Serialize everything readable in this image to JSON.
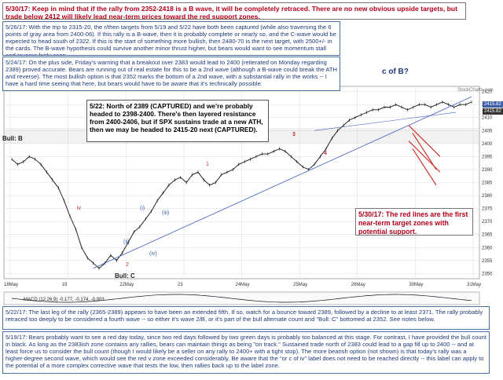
{
  "notes": {
    "n1": "5/30/17:  Keep in mind that if the rally from 2352-2418 is a B wave, it will be completely retraced.  There are no new obvious upside targets, but trade below 2412 will likely lead near-term prices toward the red support zones.",
    "n2": "5/26/17:  With the trip to 2315-20, the r/then targets from 5/19 and 5/22 have both been captured (while also traversing the 6 points of gray area from 2400-06).  If this rally is a B-wave, then it is probably complete or nearly so, and the C-wave would be expected to head south of 2322.  If this is the start of something more bullish, then 2480-70 is the next target, with 2500+/- in the cards.  The B-wave hypothesis could survive another minor thrust higher, but bears would want to see momentum stall and reverse fairly soon.",
    "n3": "5/24/17:  On the plus side, Friday's warning that a breakout over 2383 would lead to 2400 (reiterated on Monday regarding 2389) proved accurate.  Bears are running out of real estate for this to be a 2nd wave (although a B-wave could break the ATH and reverse).  The most bullish option is that 2352 marks the bottom of a 2nd wave, with a substantial rally in the works -- I have a hard time seeing that here, but bears would have to be aware that it's technically possible.",
    "n4": "5/22:  North of 2389 (CAPTURED) and we're probably headed to 2398-2400.  There's then layered resistance from 2400-2406, but if SPX sustains trade at a new ATH, then we may be headed to 2415-20 next (CAPTURED).",
    "n5": "5/30/17:  The red lines are the first near-term target zones with potential support.",
    "n6": "5/22/17:  The last leg of the rally (2365-2389) appears to have been an extended fifth.  If so, watch for a bounce toward 2389, followed by a decline to at least 2371.  The rally probably retraced too deeply to be considered a fourth wave -- so either it's wave 2/B, or it's part of the bull alternate count and \"Bull: C\" bottomed at 2352.  See notes below.",
    "n7": "5/19/17:  Bears probably want to see a red day today, since two red days followed by two green days is probably too balanced at this stage.  For contrast, I have provided the bull count in black.  As long as the 2383ish zone contains any rallies, bears can maintain things as being \"on track.\"  Sustained trade north of 2383 could lead to a gap fill up to 2400 -- and at least force us to consider the bull count (though I would likely be a seller on any rally to 2400+ with a tight stop).  The more bearish option (not shown) is that today's rally was a higher-degree second wave, which would see the red v zone exceeded considerably.  Be aware that the \"or c of iv\" label does not need to be reached directly -- this label can apply to the potential of a more complex corrective wave that tests the low, then rallies back up to the label zone."
  },
  "labels": {
    "bull_b": "Bull: B",
    "bull_c": "Bull: C",
    "c_of_b": "c of B?",
    "w3": "3",
    "w4": "4",
    "wiv": "iv",
    "wii": "(ii)",
    "wiv2": "(iv)",
    "wi": "(i)",
    "wiii": "(iii)",
    "w1": "1",
    "w2": "2",
    "macd": "MACD (12,26,9) -0.177, -0.174, -0.003",
    "watermark": "StockCharts.com"
  },
  "colors": {
    "price": "#111111",
    "trendline": "#3b5bc4",
    "support": "#d0342c",
    "gray_zone": "#c8c8c8",
    "wave_blue": "#3f5ea8",
    "wave_red": "#c4302b",
    "macd": "#111111",
    "macd_signal": "#d0342c"
  },
  "chart_data": {
    "type": "line",
    "title": "",
    "xlabel": "",
    "ylabel": "",
    "x_ticks": [
      "18May",
      "19",
      "22May",
      "23",
      "24May",
      "25May",
      "26May",
      "30May",
      "31May"
    ],
    "y_ticks": [
      2420,
      2415,
      2410,
      2405,
      2400,
      2395,
      2390,
      2385,
      2380,
      2375,
      2370,
      2365,
      2360,
      2355,
      2350
    ],
    "ylim": [
      2348,
      2422
    ],
    "price_tags": {
      "blue": "2415.82",
      "dark": "2415.82"
    },
    "series": [
      {
        "values": [
          2394,
          2392,
          2393,
          2395,
          2394,
          2392,
          2389,
          2386,
          2383,
          2378,
          2372,
          2367,
          2360,
          2356,
          2354,
          2352,
          2354,
          2357,
          2355,
          2358,
          2362,
          2366,
          2368,
          2371,
          2374,
          2378,
          2381,
          2384,
          2386,
          2387,
          2385,
          2388,
          2389,
          2386,
          2384,
          2385,
          2388,
          2389,
          2390,
          2392,
          2393,
          2394,
          2395,
          2396,
          2396,
          2397,
          2398,
          2397,
          2395,
          2393,
          2391,
          2390,
          2392,
          2395,
          2398,
          2402,
          2405,
          2407,
          2409,
          2410,
          2411,
          2412,
          2413,
          2413,
          2414,
          2414,
          2415,
          2414,
          2413,
          2414,
          2415,
          2415,
          2414,
          2415,
          2416,
          2415,
          2414,
          2415,
          2415,
          2416
        ]
      }
    ],
    "support_zones": [
      {
        "from": 2407,
        "to": 2404
      },
      {
        "from": 2401,
        "to": 2398
      }
    ]
  }
}
